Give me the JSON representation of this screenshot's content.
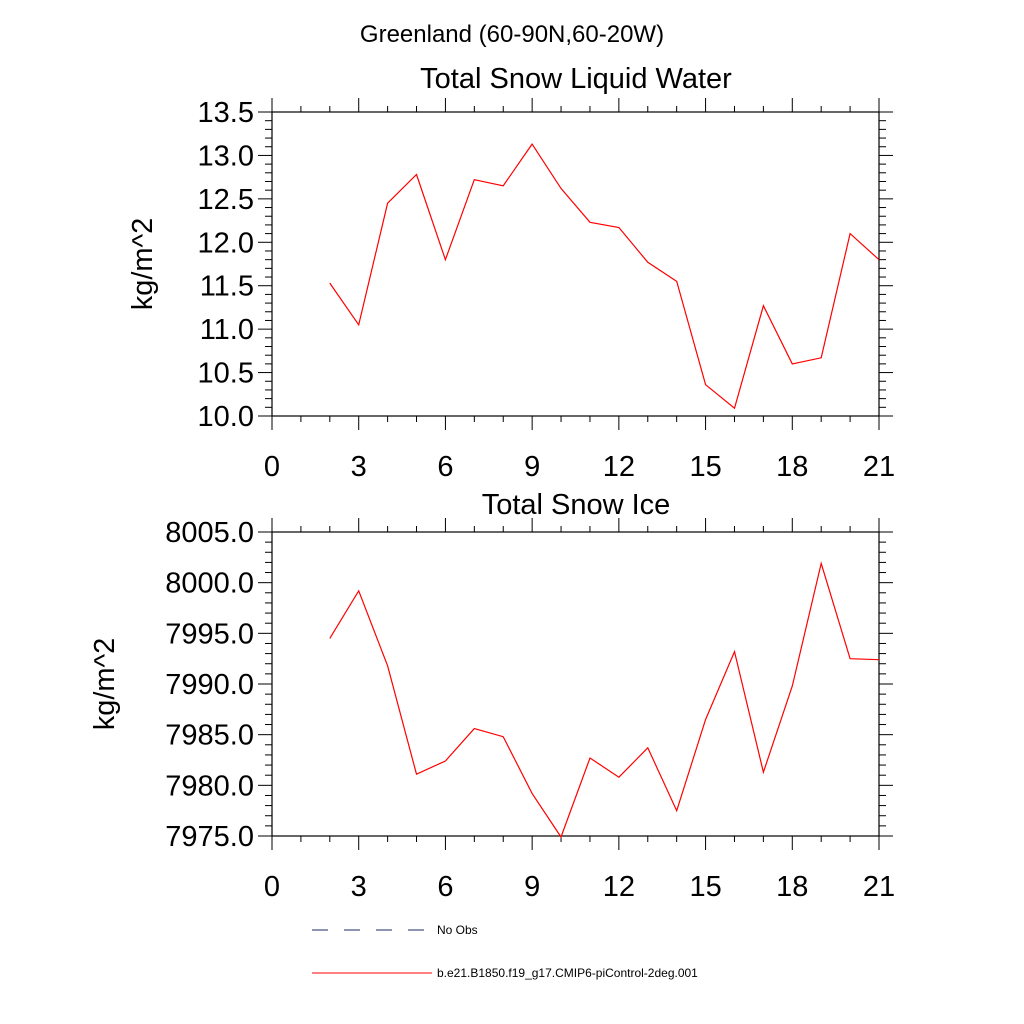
{
  "figure_title": "Greenland (60-90N,60-20W)",
  "chart_data": [
    {
      "type": "line",
      "title": "Total Snow Liquid Water",
      "xlabel": "",
      "ylabel": "kg/m^2",
      "xlim": [
        0,
        21
      ],
      "ylim": [
        10.0,
        13.5
      ],
      "xticks": [
        "0",
        "3",
        "6",
        "9",
        "12",
        "15",
        "18",
        "21"
      ],
      "yticks": [
        "10.0",
        "10.5",
        "11.0",
        "11.5",
        "12.0",
        "12.5",
        "13.0",
        "13.5"
      ],
      "series": [
        {
          "color": "#ff0000",
          "x": [
            2,
            3,
            4,
            5,
            6,
            7,
            8,
            9,
            10,
            11,
            12,
            13,
            14,
            15,
            16,
            17,
            18,
            19,
            20,
            21
          ],
          "values": [
            11.53,
            11.05,
            12.45,
            12.78,
            11.8,
            12.72,
            12.65,
            13.13,
            12.62,
            12.23,
            12.17,
            11.77,
            11.55,
            10.36,
            10.09,
            11.27,
            10.6,
            10.67,
            12.1,
            11.8
          ]
        }
      ]
    },
    {
      "type": "line",
      "title": "Total Snow Ice",
      "xlabel": "",
      "ylabel": "kg/m^2",
      "xlim": [
        0,
        21
      ],
      "ylim": [
        7975.0,
        8005.0
      ],
      "xticks": [
        "0",
        "3",
        "6",
        "9",
        "12",
        "15",
        "18",
        "21"
      ],
      "yticks": [
        "7975.0",
        "7980.0",
        "7985.0",
        "7990.0",
        "7995.0",
        "8000.0",
        "8005.0"
      ],
      "series": [
        {
          "color": "#ff0000",
          "x": [
            2,
            3,
            4,
            5,
            6,
            7,
            8,
            9,
            10,
            11,
            12,
            13,
            14,
            15,
            16,
            17,
            18,
            19,
            20,
            21
          ],
          "values": [
            7994.5,
            7999.2,
            7991.8,
            7981.1,
            7982.4,
            7985.6,
            7984.8,
            7979.2,
            7974.9,
            7982.7,
            7980.8,
            7983.7,
            7977.5,
            7986.5,
            7993.2,
            7981.3,
            7989.8,
            8001.9,
            7992.5,
            7992.4
          ]
        }
      ]
    }
  ],
  "legend": {
    "placement": "bottom",
    "items": [
      {
        "label": "No Obs",
        "style": "dashed",
        "color": "#1f2a6b"
      },
      {
        "label": "b.e21.B1850.f19_g17.CMIP6-piControl-2deg.001",
        "style": "solid",
        "color": "#ff0000"
      }
    ]
  }
}
